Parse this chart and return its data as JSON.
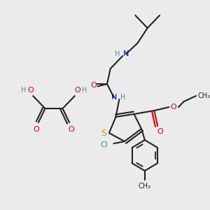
{
  "background_color": "#ebebeb",
  "fig_width": 3.0,
  "fig_height": 3.0,
  "dpi": 100,
  "colors": {
    "S": "#b8a000",
    "N": "#0000cc",
    "O": "#cc0000",
    "Cl": "#33aa33",
    "C": "#222222",
    "H": "#558888",
    "bond": "#222222"
  }
}
